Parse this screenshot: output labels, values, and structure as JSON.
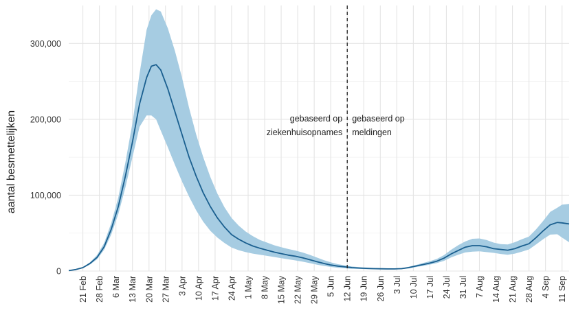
{
  "chart_data": {
    "type": "area",
    "title": "",
    "xlabel": "",
    "ylabel": "aantal besmettelijken",
    "ylim": [
      0,
      350000
    ],
    "y_ticks": [
      0,
      100000,
      200000,
      300000
    ],
    "y_tick_labels": [
      "0",
      "100,000",
      "200,000",
      "300,000"
    ],
    "x_range": [
      "2020-02-15",
      "2020-09-14"
    ],
    "x_ticks": [
      "2020-02-21",
      "2020-02-28",
      "2020-03-06",
      "2020-03-13",
      "2020-03-20",
      "2020-03-27",
      "2020-04-03",
      "2020-04-10",
      "2020-04-17",
      "2020-04-24",
      "2020-05-01",
      "2020-05-08",
      "2020-05-15",
      "2020-05-22",
      "2020-05-29",
      "2020-06-05",
      "2020-06-12",
      "2020-06-19",
      "2020-06-26",
      "2020-07-03",
      "2020-07-10",
      "2020-07-17",
      "2020-07-24",
      "2020-07-31",
      "2020-08-07",
      "2020-08-14",
      "2020-08-21",
      "2020-08-28",
      "2020-09-04",
      "2020-09-11"
    ],
    "x_tick_labels": [
      "21 Feb",
      "28 Feb",
      "6 Mar",
      "13 Mar",
      "20 Mar",
      "27 Mar",
      "3 Apr",
      "10 Apr",
      "17 Apr",
      "24 Apr",
      "1 May",
      "8 May",
      "15 May",
      "22 May",
      "29 May",
      "5 Jun",
      "12 Jun",
      "19 Jun",
      "26 Jun",
      "3 Jul",
      "10 Jul",
      "17 Jul",
      "24 Jul",
      "31 Jul",
      "7 Aug",
      "14 Aug",
      "21 Aug",
      "28 Aug",
      "4 Sep",
      "11 Sep"
    ],
    "grid": true,
    "colors": {
      "line": "#1a5f8f",
      "band": "#a6cce2"
    },
    "x": [
      "2020-02-15",
      "2020-02-18",
      "2020-02-21",
      "2020-02-24",
      "2020-02-27",
      "2020-03-01",
      "2020-03-04",
      "2020-03-07",
      "2020-03-10",
      "2020-03-13",
      "2020-03-16",
      "2020-03-19",
      "2020-03-21",
      "2020-03-23",
      "2020-03-25",
      "2020-03-28",
      "2020-03-31",
      "2020-04-03",
      "2020-04-06",
      "2020-04-09",
      "2020-04-12",
      "2020-04-15",
      "2020-04-18",
      "2020-04-21",
      "2020-04-24",
      "2020-04-27",
      "2020-04-30",
      "2020-05-03",
      "2020-05-06",
      "2020-05-09",
      "2020-05-12",
      "2020-05-15",
      "2020-05-18",
      "2020-05-21",
      "2020-05-24",
      "2020-05-27",
      "2020-05-30",
      "2020-06-02",
      "2020-06-05",
      "2020-06-08",
      "2020-06-11",
      "2020-06-14",
      "2020-06-17",
      "2020-06-20",
      "2020-06-23",
      "2020-06-26",
      "2020-06-29",
      "2020-07-02",
      "2020-07-05",
      "2020-07-08",
      "2020-07-11",
      "2020-07-14",
      "2020-07-17",
      "2020-07-20",
      "2020-07-23",
      "2020-07-26",
      "2020-07-29",
      "2020-08-01",
      "2020-08-04",
      "2020-08-07",
      "2020-08-10",
      "2020-08-13",
      "2020-08-16",
      "2020-08-19",
      "2020-08-22",
      "2020-08-25",
      "2020-08-28",
      "2020-08-31",
      "2020-09-03",
      "2020-09-06",
      "2020-09-09",
      "2020-09-11",
      "2020-09-14"
    ],
    "series": [
      {
        "values": [
          500,
          2000,
          4500,
          10000,
          18000,
          32000,
          55000,
          85000,
          125000,
          170000,
          220000,
          255000,
          270000,
          272000,
          265000,
          240000,
          210000,
          180000,
          150000,
          125000,
          103000,
          85000,
          70000,
          58000,
          48000,
          42000,
          37000,
          33000,
          30000,
          27500,
          25000,
          23000,
          21000,
          19500,
          17500,
          15000,
          12500,
          10000,
          8000,
          6500,
          5500,
          4500,
          4000,
          3500,
          3200,
          3000,
          2800,
          2800,
          3200,
          4500,
          6500,
          8500,
          10500,
          13000,
          17000,
          22500,
          27000,
          31500,
          33500,
          33500,
          32000,
          29500,
          28500,
          27500,
          29500,
          33000,
          36000,
          44000,
          53000,
          61000,
          64000,
          63500,
          62000
        ],
        "lower": [
          400,
          1600,
          3700,
          8500,
          15500,
          28000,
          48000,
          75000,
          110000,
          150000,
          190000,
          205000,
          205000,
          200000,
          185000,
          163000,
          140000,
          118000,
          98000,
          80000,
          65000,
          53000,
          44000,
          37000,
          31000,
          27500,
          25000,
          23000,
          21500,
          20000,
          18500,
          17000,
          15500,
          14000,
          12500,
          10500,
          8500,
          6800,
          5400,
          4300,
          3600,
          3000,
          2800,
          2500,
          2300,
          2200,
          2100,
          2000,
          2400,
          3400,
          5200,
          6800,
          8500,
          10500,
          13500,
          18000,
          21500,
          24500,
          25500,
          26000,
          25000,
          24000,
          22500,
          21500,
          23000,
          25500,
          28500,
          35000,
          42000,
          48000,
          48500,
          44000,
          38000
        ],
        "upper": [
          600,
          2400,
          5300,
          11500,
          21000,
          37000,
          63000,
          97000,
          143000,
          195000,
          260000,
          318000,
          337000,
          345000,
          342000,
          320000,
          290000,
          255000,
          215000,
          180000,
          150000,
          124000,
          102000,
          84000,
          70000,
          60000,
          52000,
          46000,
          41000,
          37500,
          34000,
          31500,
          29000,
          27000,
          24500,
          21500,
          18000,
          14500,
          11500,
          9000,
          7500,
          6000,
          5200,
          4600,
          4200,
          3900,
          3700,
          3600,
          4000,
          5600,
          8000,
          10500,
          13000,
          16000,
          21000,
          28000,
          34000,
          39000,
          42500,
          43000,
          41000,
          37500,
          35500,
          35000,
          38000,
          42000,
          45500,
          55000,
          66000,
          78000,
          83500,
          87500,
          88500
        ]
      }
    ],
    "annotations": [
      {
        "date": "2020-06-12",
        "style": "dashed-vertical-line"
      },
      {
        "side": "left",
        "lines": [
          "gebaseerd op",
          "ziekenhuisopnames"
        ]
      },
      {
        "side": "right",
        "lines": [
          "gebaseerd op",
          "meldingen"
        ]
      }
    ]
  }
}
